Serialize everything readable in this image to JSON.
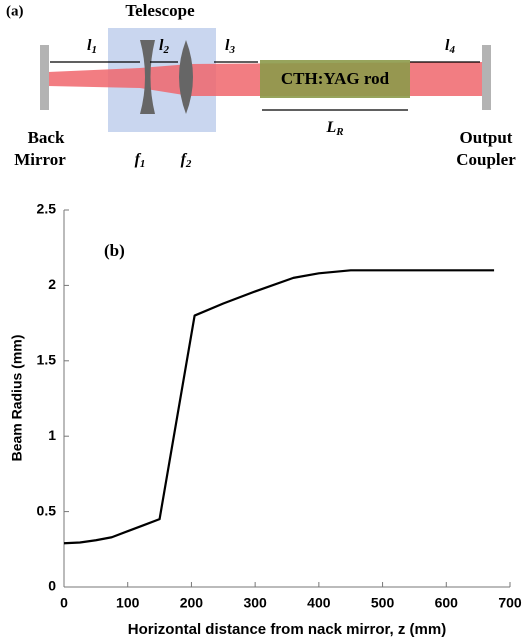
{
  "diagram": {
    "panel_label": "(a)",
    "telescope": "Telescope",
    "l1": {
      "text": "l",
      "sub": "1"
    },
    "l2": {
      "text": "l",
      "sub": "2"
    },
    "l3": {
      "text": "l",
      "sub": "3"
    },
    "l4": {
      "text": "l",
      "sub": "4"
    },
    "f1": {
      "text": "f",
      "sub": "1"
    },
    "f2": {
      "text": "f",
      "sub": "2"
    },
    "rod": "CTH:YAG rod",
    "LR": {
      "text": "L",
      "sub": "R"
    },
    "back_mirror": [
      "Back",
      "Mirror"
    ],
    "output_coupler": [
      "Output",
      "Coupler"
    ]
  },
  "chart_data": {
    "type": "line",
    "annotation": "(b)",
    "xlabel": "Horizontal distance from nack mirror, z (mm)",
    "ylabel": "Beam Radius (mm)",
    "x": [
      0,
      25,
      50,
      75,
      100,
      125,
      150,
      205,
      250,
      300,
      360,
      400,
      450,
      500,
      600,
      675
    ],
    "values": [
      0.29,
      0.295,
      0.31,
      0.33,
      0.37,
      0.41,
      0.45,
      1.8,
      1.88,
      1.96,
      2.05,
      2.08,
      2.1,
      2.1,
      2.1,
      2.1
    ],
    "color": "#000000",
    "xlim": [
      0,
      700
    ],
    "xticks": [
      0,
      100,
      200,
      300,
      400,
      500,
      600,
      700
    ],
    "ylim": [
      0,
      2.5
    ],
    "yticks": [
      0,
      0.5,
      1,
      1.5,
      2,
      2.5
    ],
    "grid": false
  }
}
